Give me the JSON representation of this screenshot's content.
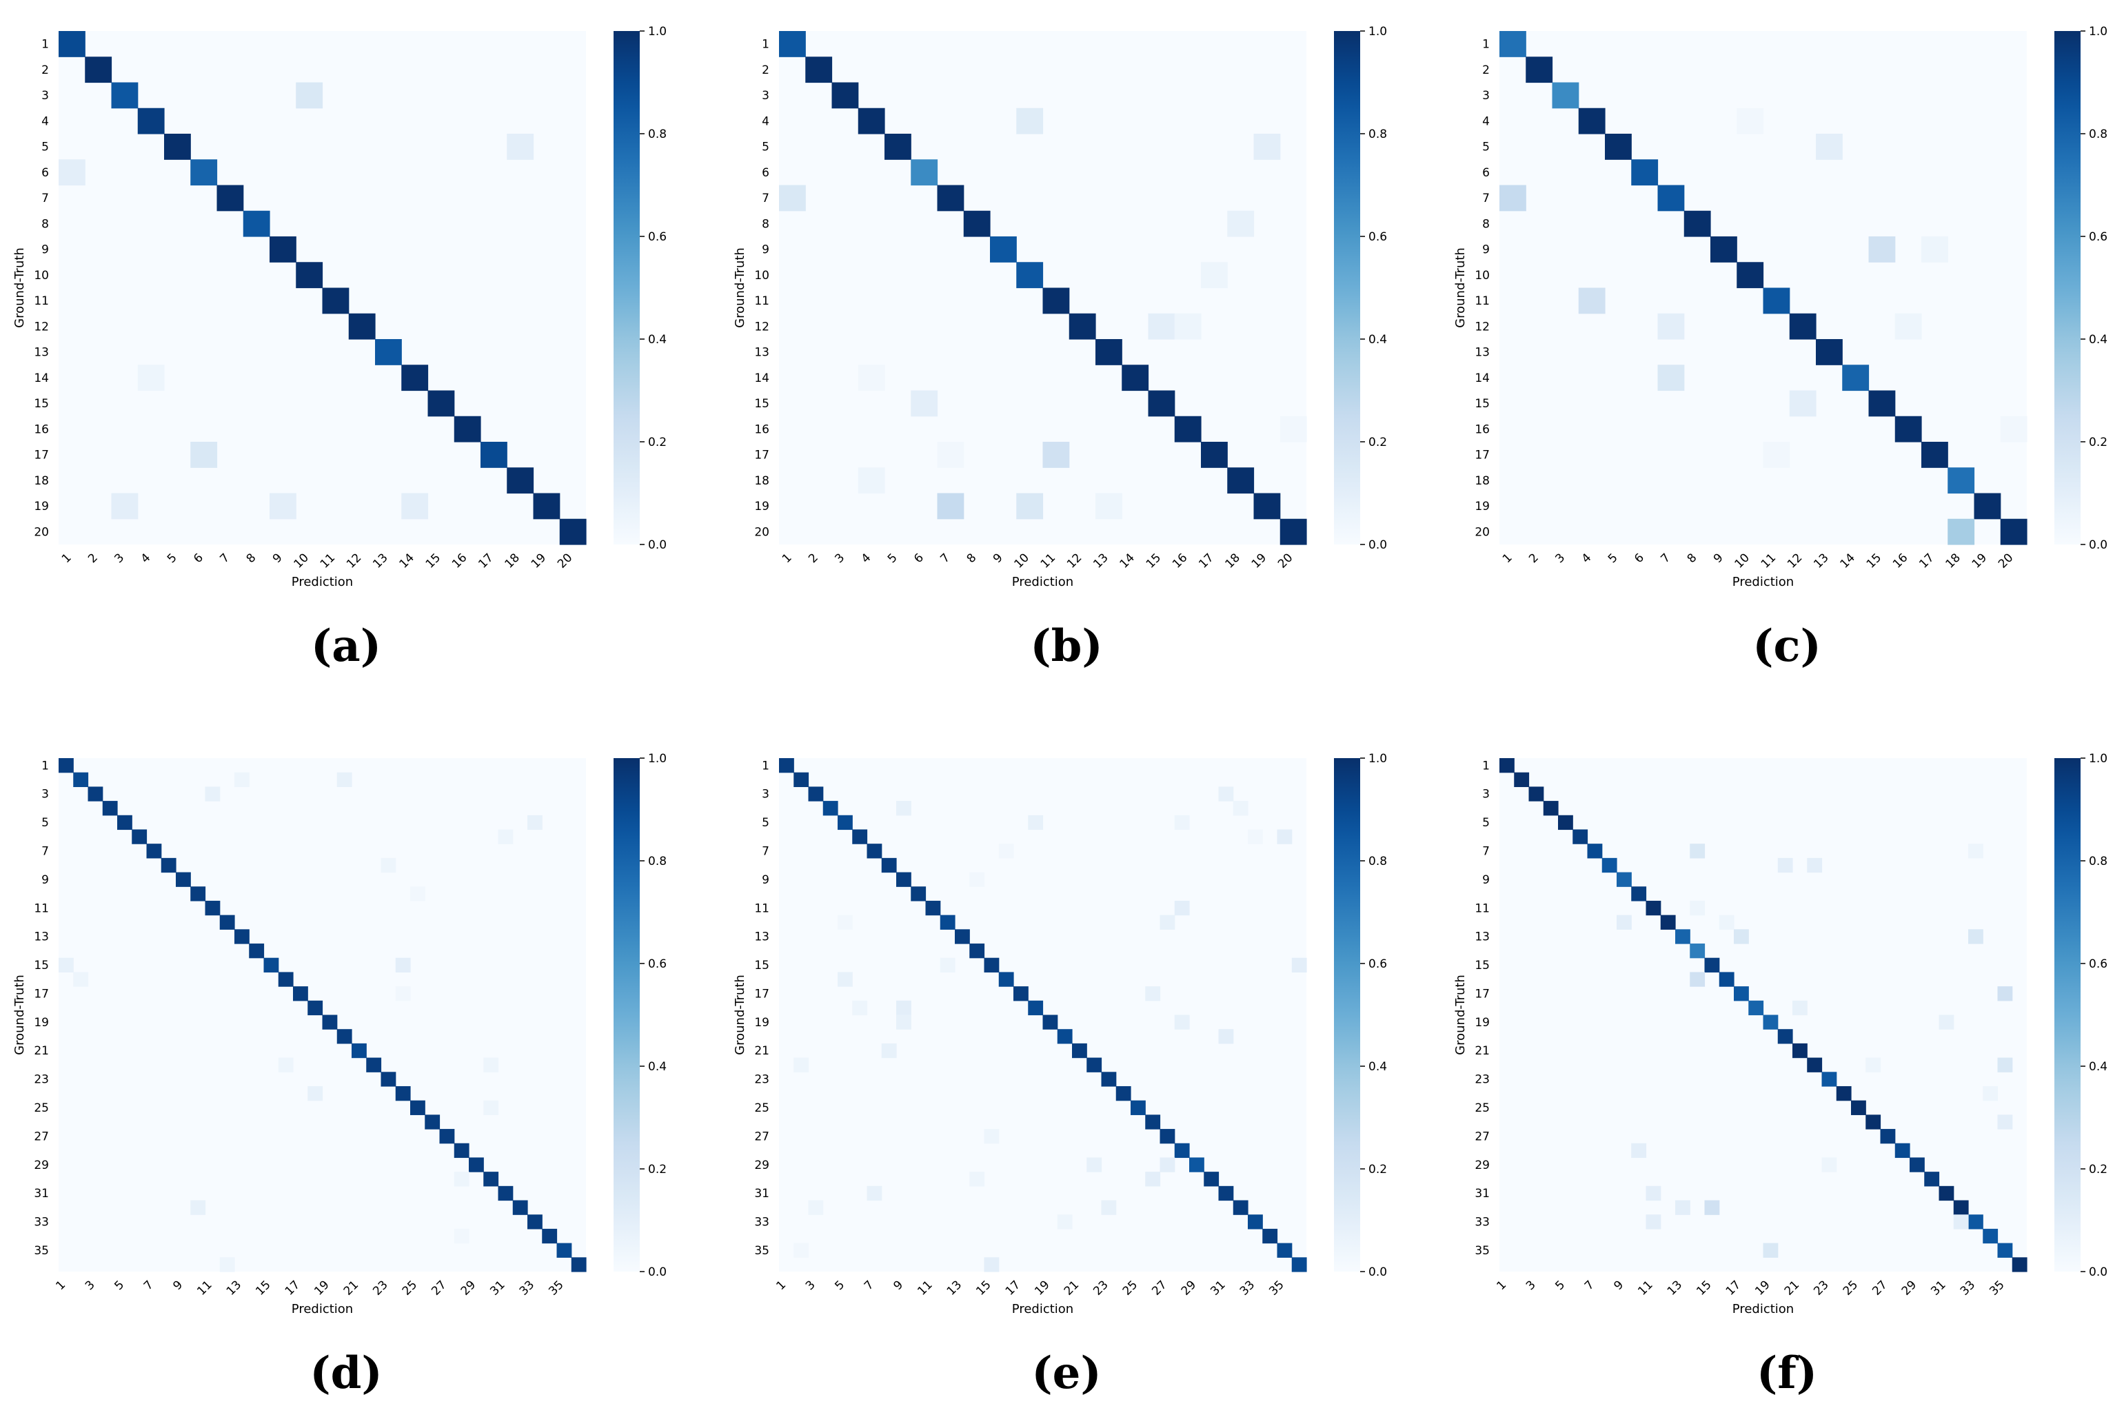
{
  "chart_data": [
    {
      "type": "heatmap",
      "panel_label": "(a)",
      "n": 20,
      "tick_labels": [
        "1",
        "2",
        "3",
        "4",
        "5",
        "6",
        "7",
        "8",
        "9",
        "10",
        "11",
        "12",
        "13",
        "14",
        "15",
        "16",
        "17",
        "18",
        "19",
        "20"
      ],
      "xlabel": "Prediction",
      "ylabel": "Ground-Truth",
      "colorbar_ticks": [
        "0.0",
        "0.2",
        "0.4",
        "0.6",
        "0.8",
        "1.0"
      ],
      "colorbar_range": [
        0,
        1
      ],
      "diagonal": [
        0.9,
        1.0,
        0.85,
        0.95,
        1.0,
        0.8,
        1.0,
        0.85,
        1.0,
        1.0,
        1.0,
        1.0,
        0.85,
        1.0,
        1.0,
        1.0,
        0.9,
        1.0,
        1.0,
        1.0
      ],
      "off_diagonal": [
        [
          3,
          10,
          0.15
        ],
        [
          5,
          18,
          0.1
        ],
        [
          6,
          1,
          0.1
        ],
        [
          14,
          4,
          0.05
        ],
        [
          17,
          6,
          0.15
        ],
        [
          19,
          3,
          0.1
        ],
        [
          19,
          9,
          0.1
        ],
        [
          19,
          14,
          0.1
        ]
      ]
    },
    {
      "type": "heatmap",
      "panel_label": "(b)",
      "n": 20,
      "tick_labels": [
        "1",
        "2",
        "3",
        "4",
        "5",
        "6",
        "7",
        "8",
        "9",
        "10",
        "11",
        "12",
        "13",
        "14",
        "15",
        "16",
        "17",
        "18",
        "19",
        "20"
      ],
      "xlabel": "Prediction",
      "ylabel": "Ground-Truth",
      "colorbar_ticks": [
        "0.0",
        "0.2",
        "0.4",
        "0.6",
        "0.8",
        "1.0"
      ],
      "colorbar_range": [
        0,
        1
      ],
      "diagonal": [
        0.85,
        1.0,
        1.0,
        1.0,
        1.0,
        0.65,
        1.0,
        1.0,
        0.85,
        0.85,
        1.0,
        1.0,
        1.0,
        1.0,
        1.0,
        1.0,
        1.0,
        1.0,
        1.0,
        1.0
      ],
      "off_diagonal": [
        [
          4,
          10,
          0.12
        ],
        [
          5,
          19,
          0.1
        ],
        [
          7,
          1,
          0.15
        ],
        [
          8,
          18,
          0.08
        ],
        [
          10,
          17,
          0.05
        ],
        [
          12,
          15,
          0.1
        ],
        [
          12,
          16,
          0.05
        ],
        [
          14,
          4,
          0.03
        ],
        [
          15,
          6,
          0.1
        ],
        [
          16,
          20,
          0.03
        ],
        [
          17,
          7,
          0.03
        ],
        [
          17,
          11,
          0.2
        ],
        [
          18,
          4,
          0.05
        ],
        [
          19,
          7,
          0.25
        ],
        [
          19,
          10,
          0.15
        ],
        [
          19,
          13,
          0.05
        ]
      ]
    },
    {
      "type": "heatmap",
      "panel_label": "(c)",
      "n": 20,
      "tick_labels": [
        "1",
        "2",
        "3",
        "4",
        "5",
        "6",
        "7",
        "8",
        "9",
        "10",
        "11",
        "12",
        "13",
        "14",
        "15",
        "16",
        "17",
        "18",
        "19",
        "20"
      ],
      "xlabel": "Prediction",
      "ylabel": "Ground-Truth",
      "colorbar_ticks": [
        "0.0",
        "0.2",
        "0.4",
        "0.6",
        "0.8",
        "1.0"
      ],
      "colorbar_range": [
        0,
        1
      ],
      "diagonal": [
        0.75,
        1.0,
        0.65,
        1.0,
        1.0,
        0.85,
        0.85,
        1.0,
        1.0,
        1.0,
        0.85,
        1.0,
        1.0,
        0.8,
        1.0,
        1.0,
        1.0,
        0.75,
        1.0,
        1.0
      ],
      "off_diagonal": [
        [
          4,
          10,
          0.03
        ],
        [
          5,
          13,
          0.1
        ],
        [
          7,
          1,
          0.25
        ],
        [
          9,
          15,
          0.2
        ],
        [
          9,
          17,
          0.05
        ],
        [
          11,
          4,
          0.2
        ],
        [
          12,
          7,
          0.1
        ],
        [
          12,
          16,
          0.05
        ],
        [
          14,
          7,
          0.15
        ],
        [
          15,
          12,
          0.1
        ],
        [
          16,
          20,
          0.03
        ],
        [
          17,
          11,
          0.03
        ],
        [
          20,
          18,
          0.35
        ]
      ]
    },
    {
      "type": "heatmap",
      "panel_label": "(d)",
      "n": 36,
      "tick_labels": [
        "1",
        "3",
        "5",
        "7",
        "9",
        "11",
        "13",
        "15",
        "17",
        "19",
        "21",
        "23",
        "25",
        "27",
        "29",
        "31",
        "33",
        "35"
      ],
      "xlabel": "Prediction",
      "ylabel": "Ground-Truth",
      "colorbar_ticks": [
        "0.0",
        "0.2",
        "0.4",
        "0.6",
        "0.8",
        "1.0"
      ],
      "colorbar_range": [
        0,
        1
      ],
      "diagonal": [
        0.95,
        0.9,
        0.95,
        0.95,
        0.95,
        0.95,
        0.95,
        0.95,
        0.95,
        0.95,
        0.95,
        0.95,
        0.95,
        0.95,
        0.9,
        0.95,
        0.95,
        0.95,
        0.95,
        0.95,
        0.9,
        0.95,
        0.95,
        0.95,
        0.95,
        0.95,
        0.95,
        0.95,
        0.95,
        0.95,
        0.95,
        0.95,
        0.95,
        0.95,
        0.9,
        0.95
      ],
      "off_diagonal": [
        [
          2,
          13,
          0.05
        ],
        [
          2,
          20,
          0.08
        ],
        [
          3,
          11,
          0.08
        ],
        [
          5,
          33,
          0.08
        ],
        [
          6,
          31,
          0.05
        ],
        [
          8,
          23,
          0.05
        ],
        [
          10,
          25,
          0.03
        ],
        [
          15,
          1,
          0.08
        ],
        [
          15,
          24,
          0.1
        ],
        [
          16,
          2,
          0.05
        ],
        [
          17,
          24,
          0.03
        ],
        [
          22,
          16,
          0.05
        ],
        [
          22,
          30,
          0.05
        ],
        [
          24,
          18,
          0.08
        ],
        [
          25,
          30,
          0.05
        ],
        [
          30,
          28,
          0.05
        ],
        [
          32,
          10,
          0.08
        ],
        [
          34,
          28,
          0.03
        ],
        [
          36,
          12,
          0.05
        ]
      ]
    },
    {
      "type": "heatmap",
      "panel_label": "(e)",
      "n": 36,
      "tick_labels": [
        "1",
        "3",
        "5",
        "7",
        "9",
        "11",
        "13",
        "15",
        "17",
        "19",
        "21",
        "23",
        "25",
        "27",
        "29",
        "31",
        "33",
        "35"
      ],
      "xlabel": "Prediction",
      "ylabel": "Ground-Truth",
      "colorbar_ticks": [
        "0.0",
        "0.2",
        "0.4",
        "0.6",
        "0.8",
        "1.0"
      ],
      "colorbar_range": [
        0,
        1
      ],
      "diagonal": [
        0.95,
        0.95,
        0.95,
        0.9,
        0.9,
        0.95,
        0.95,
        0.95,
        0.95,
        0.95,
        0.95,
        0.9,
        0.95,
        0.95,
        0.95,
        0.9,
        0.95,
        0.9,
        0.95,
        0.9,
        0.95,
        0.95,
        0.95,
        0.95,
        0.9,
        0.95,
        0.95,
        0.9,
        0.85,
        0.95,
        0.95,
        0.95,
        0.9,
        0.95,
        0.9,
        0.9
      ],
      "off_diagonal": [
        [
          3,
          31,
          0.08
        ],
        [
          4,
          9,
          0.08
        ],
        [
          4,
          32,
          0.05
        ],
        [
          5,
          18,
          0.08
        ],
        [
          5,
          28,
          0.05
        ],
        [
          6,
          33,
          0.03
        ],
        [
          6,
          35,
          0.1
        ],
        [
          7,
          16,
          0.03
        ],
        [
          9,
          14,
          0.03
        ],
        [
          11,
          28,
          0.1
        ],
        [
          12,
          5,
          0.03
        ],
        [
          12,
          27,
          0.08
        ],
        [
          15,
          12,
          0.05
        ],
        [
          15,
          36,
          0.1
        ],
        [
          16,
          5,
          0.08
        ],
        [
          17,
          26,
          0.08
        ],
        [
          18,
          6,
          0.05
        ],
        [
          18,
          9,
          0.1
        ],
        [
          19,
          9,
          0.08
        ],
        [
          19,
          28,
          0.08
        ],
        [
          20,
          31,
          0.1
        ],
        [
          21,
          8,
          0.08
        ],
        [
          22,
          2,
          0.05
        ],
        [
          27,
          15,
          0.05
        ],
        [
          29,
          22,
          0.08
        ],
        [
          29,
          27,
          0.1
        ],
        [
          30,
          14,
          0.05
        ],
        [
          30,
          26,
          0.1
        ],
        [
          31,
          7,
          0.08
        ],
        [
          32,
          3,
          0.05
        ],
        [
          32,
          23,
          0.08
        ],
        [
          33,
          20,
          0.05
        ],
        [
          35,
          2,
          0.03
        ],
        [
          36,
          15,
          0.1
        ]
      ]
    },
    {
      "type": "heatmap",
      "panel_label": "(f)",
      "n": 36,
      "tick_labels": [
        "1",
        "3",
        "5",
        "7",
        "9",
        "11",
        "13",
        "15",
        "17",
        "19",
        "21",
        "23",
        "25",
        "27",
        "29",
        "31",
        "33",
        "35"
      ],
      "xlabel": "Prediction",
      "ylabel": "Ground-Truth",
      "colorbar_ticks": [
        "0.0",
        "0.2",
        "0.4",
        "0.6",
        "0.8",
        "1.0"
      ],
      "colorbar_range": [
        0,
        1
      ],
      "diagonal": [
        1.0,
        1.0,
        1.0,
        1.0,
        1.0,
        0.95,
        0.9,
        0.85,
        0.8,
        0.95,
        1.0,
        1.0,
        0.8,
        0.7,
        0.95,
        0.9,
        0.85,
        0.8,
        0.8,
        0.95,
        1.0,
        1.0,
        0.85,
        1.0,
        1.0,
        1.0,
        0.95,
        0.9,
        0.95,
        0.95,
        1.0,
        1.0,
        0.85,
        0.85,
        0.85,
        1.0
      ],
      "off_diagonal": [
        [
          7,
          14,
          0.15
        ],
        [
          7,
          33,
          0.05
        ],
        [
          8,
          20,
          0.1
        ],
        [
          8,
          22,
          0.1
        ],
        [
          11,
          14,
          0.05
        ],
        [
          12,
          9,
          0.1
        ],
        [
          12,
          16,
          0.05
        ],
        [
          13,
          17,
          0.15
        ],
        [
          13,
          33,
          0.15
        ],
        [
          16,
          14,
          0.2
        ],
        [
          17,
          35,
          0.2
        ],
        [
          18,
          21,
          0.08
        ],
        [
          19,
          31,
          0.08
        ],
        [
          22,
          26,
          0.05
        ],
        [
          22,
          35,
          0.15
        ],
        [
          24,
          34,
          0.05
        ],
        [
          26,
          35,
          0.1
        ],
        [
          28,
          10,
          0.1
        ],
        [
          29,
          23,
          0.05
        ],
        [
          31,
          11,
          0.1
        ],
        [
          32,
          13,
          0.1
        ],
        [
          32,
          15,
          0.2
        ],
        [
          33,
          11,
          0.1
        ],
        [
          33,
          32,
          0.1
        ],
        [
          35,
          19,
          0.15
        ]
      ]
    }
  ]
}
